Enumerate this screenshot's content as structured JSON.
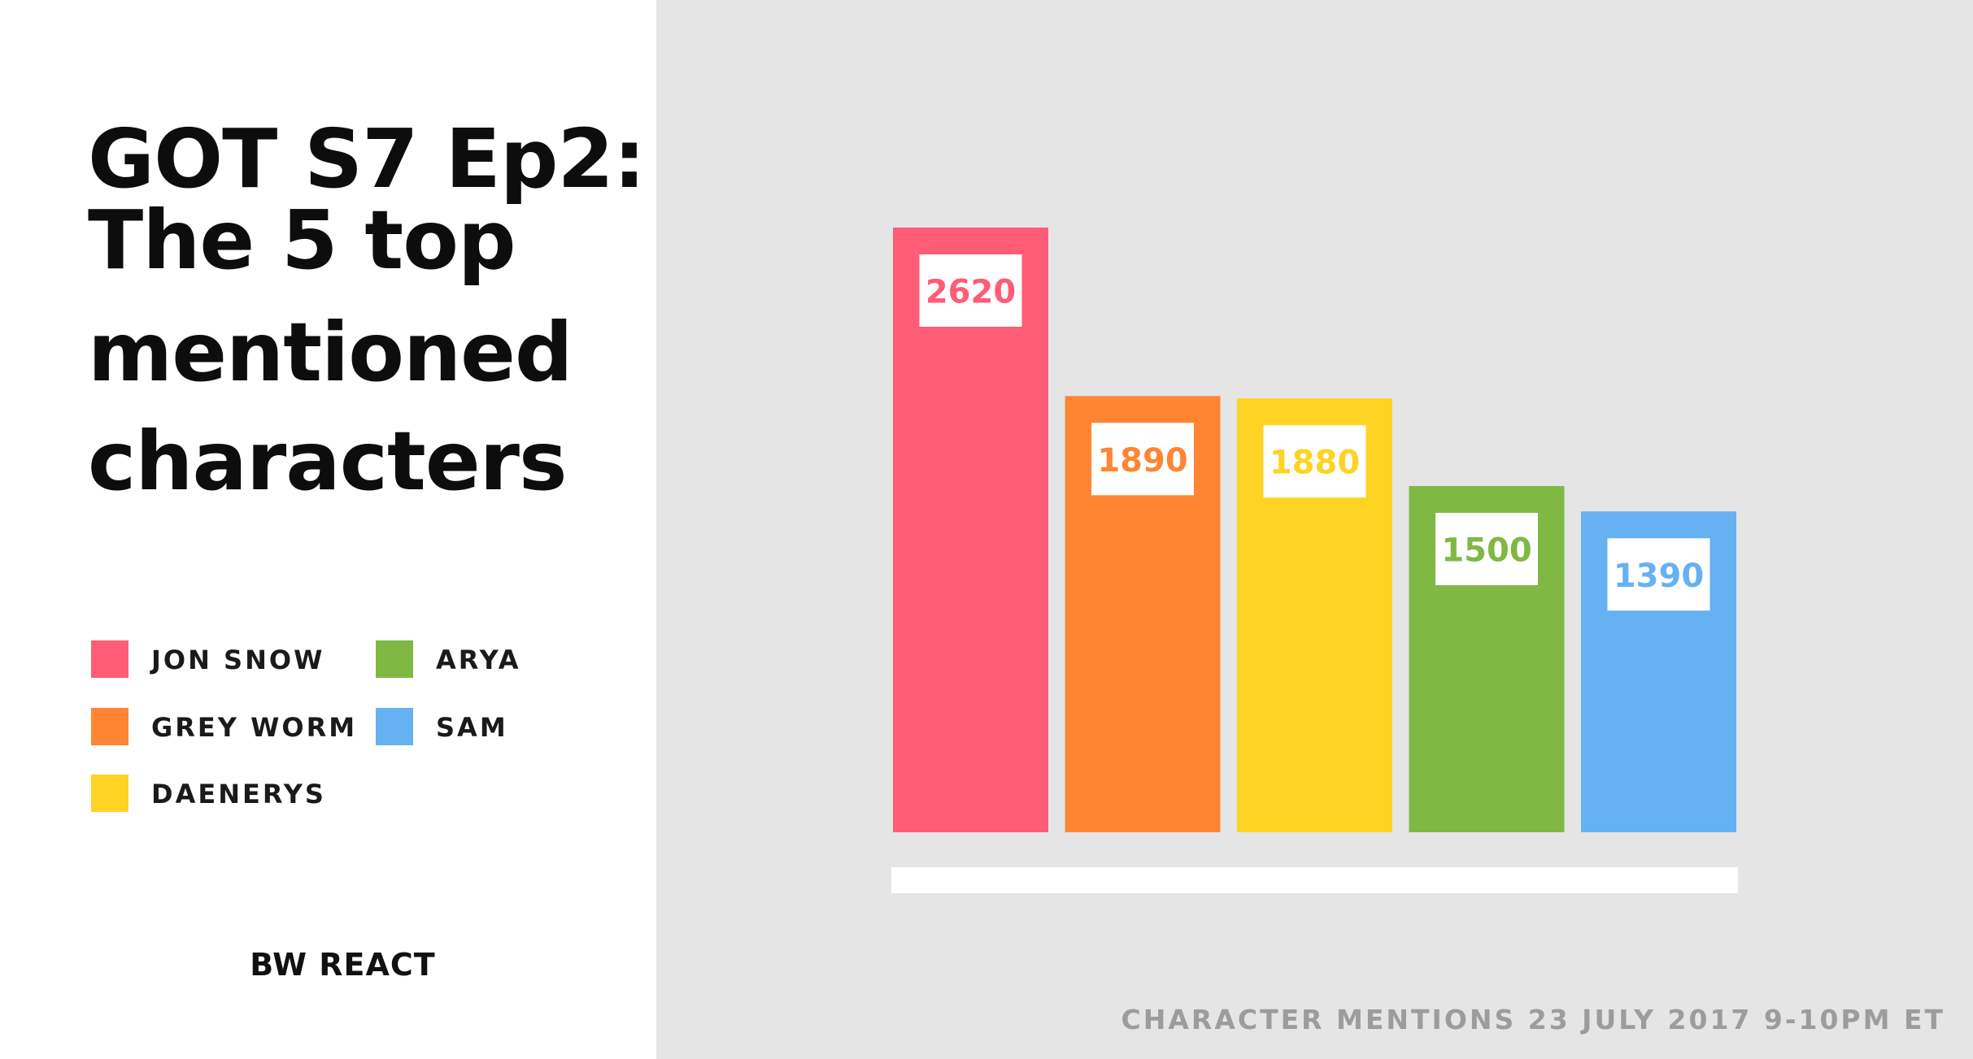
{
  "title": {
    "line1": "GOT S7 Ep2:",
    "line2": "The 5 top",
    "line3": "mentioned",
    "line4": "characters"
  },
  "legend": [
    {
      "label": "JON SNOW",
      "color": "#ff5c77"
    },
    {
      "label": "GREY WORM",
      "color": "#ff8533"
    },
    {
      "label": "DAENERYS",
      "color": "#ffd324"
    },
    {
      "label": "ARYA",
      "color": "#7fb843"
    },
    {
      "label": "SAM",
      "color": "#66b1f2"
    }
  ],
  "brand": "BW REACT",
  "footnote": "CHARACTER MENTIONS 23 JULY 2017 9-10PM ET",
  "chart_data": {
    "type": "bar",
    "categories": [
      "JON SNOW",
      "GREY WORM",
      "DAENERYS",
      "ARYA",
      "SAM"
    ],
    "values": [
      2620,
      1890,
      1880,
      1500,
      1390
    ],
    "colors": [
      "#ff5c77",
      "#ff8533",
      "#ffd324",
      "#7fb843",
      "#66b1f2"
    ],
    "title": "GOT S7 Ep2: The 5 top mentioned characters",
    "xlabel": "",
    "ylabel": "",
    "ylim": [
      0,
      2620
    ],
    "grid": false,
    "legend": "left",
    "data_labels": true
  }
}
